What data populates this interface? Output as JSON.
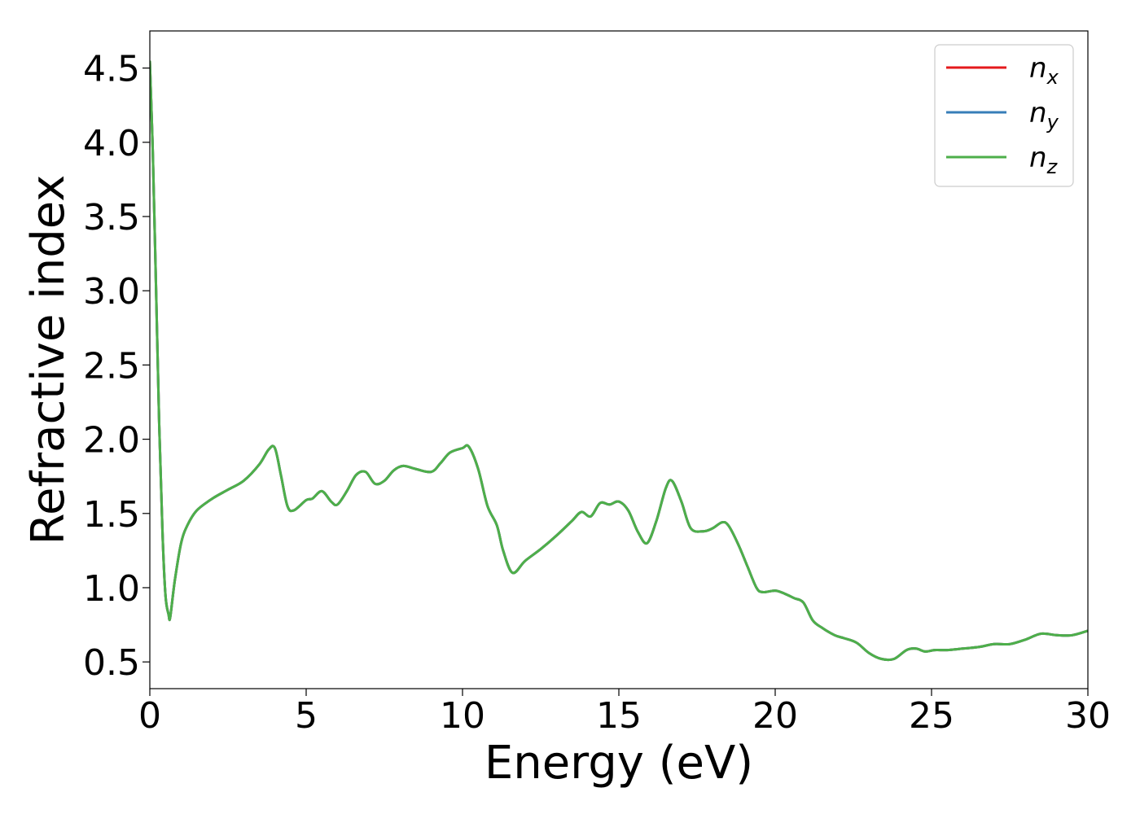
{
  "chart_data": {
    "type": "line",
    "title": "",
    "xlabel": "Energy (eV)",
    "ylabel": "Refractive index",
    "xlim": [
      0,
      30
    ],
    "ylim": [
      0.32,
      4.75
    ],
    "x_ticks": [
      0,
      5,
      10,
      15,
      20,
      25,
      30
    ],
    "x_tick_labels": [
      "0",
      "5",
      "10",
      "15",
      "20",
      "25",
      "30"
    ],
    "y_ticks": [
      0.5,
      1.0,
      1.5,
      2.0,
      2.5,
      3.0,
      3.5,
      4.0,
      4.5
    ],
    "y_tick_labels": [
      "0.5",
      "1.0",
      "1.5",
      "2.0",
      "2.5",
      "3.0",
      "3.5",
      "4.0",
      "4.5"
    ],
    "grid": false,
    "legend_position": "top-right",
    "series": [
      {
        "name": "n_x",
        "label_base": "n",
        "label_sub": "x",
        "color": "#e41a1c"
      },
      {
        "name": "n_y",
        "label_base": "n",
        "label_sub": "y",
        "color": "#377eb8"
      },
      {
        "name": "n_z",
        "label_base": "n",
        "label_sub": "z",
        "color": "#4daf4a"
      }
    ],
    "shared_curve": {
      "x": [
        0,
        0.1,
        0.2,
        0.3,
        0.4,
        0.5,
        0.6,
        0.65,
        0.8,
        1.0,
        1.2,
        1.5,
        2.0,
        2.5,
        3.0,
        3.5,
        3.8,
        4.0,
        4.2,
        4.4,
        4.6,
        5.0,
        5.2,
        5.5,
        5.8,
        6.0,
        6.3,
        6.6,
        6.9,
        7.2,
        7.5,
        7.8,
        8.1,
        8.5,
        9.0,
        9.3,
        9.6,
        10.0,
        10.2,
        10.5,
        10.8,
        11.1,
        11.3,
        11.6,
        12.0,
        12.5,
        13.0,
        13.5,
        13.8,
        14.1,
        14.4,
        14.7,
        15.0,
        15.3,
        15.6,
        15.9,
        16.2,
        16.5,
        16.7,
        17.0,
        17.3,
        17.7,
        18.0,
        18.3,
        18.5,
        18.8,
        19.1,
        19.4,
        19.6,
        20.0,
        20.3,
        20.6,
        20.9,
        21.2,
        21.5,
        21.9,
        22.2,
        22.6,
        23.0,
        23.4,
        23.8,
        24.2,
        24.5,
        24.8,
        25.1,
        25.5,
        26.0,
        26.5,
        27.0,
        27.5,
        28.0,
        28.5,
        29.0,
        29.5,
        30.0
      ],
      "y": [
        4.55,
        3.9,
        3.0,
        2.1,
        1.4,
        0.95,
        0.82,
        0.8,
        1.05,
        1.3,
        1.42,
        1.52,
        1.6,
        1.66,
        1.72,
        1.83,
        1.93,
        1.94,
        1.75,
        1.55,
        1.52,
        1.59,
        1.6,
        1.65,
        1.58,
        1.56,
        1.65,
        1.76,
        1.78,
        1.7,
        1.72,
        1.79,
        1.82,
        1.8,
        1.78,
        1.84,
        1.91,
        1.94,
        1.95,
        1.8,
        1.55,
        1.42,
        1.25,
        1.1,
        1.18,
        1.26,
        1.35,
        1.45,
        1.51,
        1.48,
        1.57,
        1.56,
        1.58,
        1.52,
        1.38,
        1.3,
        1.45,
        1.67,
        1.72,
        1.58,
        1.4,
        1.38,
        1.4,
        1.44,
        1.42,
        1.3,
        1.15,
        1.0,
        0.97,
        0.98,
        0.96,
        0.93,
        0.9,
        0.78,
        0.73,
        0.68,
        0.66,
        0.63,
        0.56,
        0.52,
        0.52,
        0.58,
        0.59,
        0.57,
        0.58,
        0.58,
        0.59,
        0.6,
        0.62,
        0.62,
        0.65,
        0.69,
        0.68,
        0.68,
        0.71
      ]
    }
  }
}
